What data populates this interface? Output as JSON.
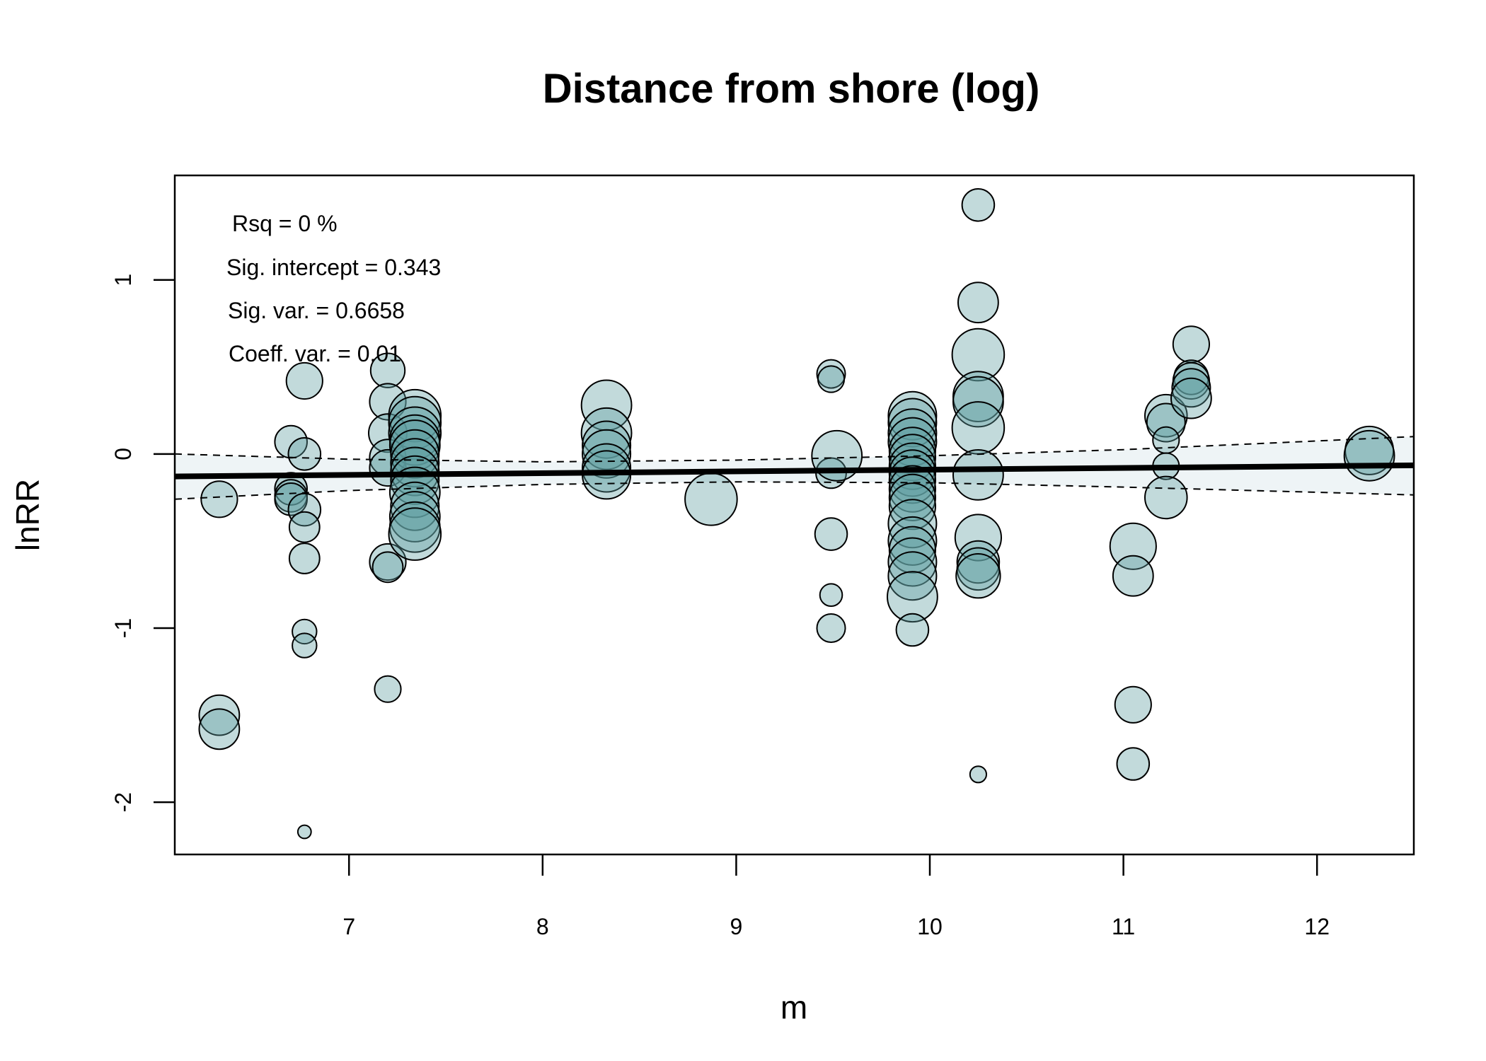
{
  "chart_data": {
    "type": "scatter",
    "title": "Distance from shore (log)",
    "xlabel": "m",
    "ylabel": "lnRR",
    "xlim": [
      6.1,
      12.5
    ],
    "ylim": [
      -2.3,
      1.6
    ],
    "xticks": [
      7,
      8,
      9,
      10,
      11,
      12
    ],
    "xtick_labels": [
      "7",
      "8",
      "9",
      "10",
      "11",
      "12"
    ],
    "yticks": [
      -2,
      -1,
      0,
      1
    ],
    "ytick_labels": [
      "-2",
      "-1",
      "0",
      "1"
    ],
    "grid": false,
    "legend": "none",
    "annotations": [
      "Rsq = 0 %",
      "Sig. intercept = 0.343",
      "Sig. var. = 0.6658",
      "Coeff. var. = 0.01"
    ],
    "regression": {
      "intercept": -0.19,
      "slope": 0.01
    },
    "ci_lower": [
      [
        6.1,
        -0.26
      ],
      [
        7,
        -0.21
      ],
      [
        8,
        -0.175
      ],
      [
        9,
        -0.16
      ],
      [
        10,
        -0.165
      ],
      [
        11,
        -0.19
      ],
      [
        12,
        -0.22
      ],
      [
        12.5,
        -0.235
      ]
    ],
    "ci_upper": [
      [
        6.1,
        0.0
      ],
      [
        7,
        -0.03
      ],
      [
        8,
        -0.045
      ],
      [
        9,
        -0.035
      ],
      [
        10,
        -0.01
      ],
      [
        11,
        0.025
      ],
      [
        12,
        0.075
      ],
      [
        12.5,
        0.1
      ]
    ],
    "points": [
      {
        "x": 6.33,
        "y": -0.26,
        "s": 0.7
      },
      {
        "x": 6.33,
        "y": -1.5,
        "s": 0.8
      },
      {
        "x": 6.33,
        "y": -1.58,
        "s": 0.8
      },
      {
        "x": 6.7,
        "y": 0.07,
        "s": 0.6
      },
      {
        "x": 6.7,
        "y": -0.2,
        "s": 0.6
      },
      {
        "x": 6.7,
        "y": -0.24,
        "s": 0.6
      },
      {
        "x": 6.7,
        "y": -0.26,
        "s": 0.6
      },
      {
        "x": 6.77,
        "y": 0.42,
        "s": 0.7
      },
      {
        "x": 6.77,
        "y": 0.0,
        "s": 0.6
      },
      {
        "x": 6.77,
        "y": -0.32,
        "s": 0.6
      },
      {
        "x": 6.77,
        "y": -0.42,
        "s": 0.55
      },
      {
        "x": 6.77,
        "y": -0.6,
        "s": 0.55
      },
      {
        "x": 6.77,
        "y": -1.02,
        "s": 0.4
      },
      {
        "x": 6.77,
        "y": -1.1,
        "s": 0.4
      },
      {
        "x": 6.77,
        "y": -2.17,
        "s": 0.12
      },
      {
        "x": 7.2,
        "y": 0.48,
        "s": 0.65
      },
      {
        "x": 7.2,
        "y": 0.3,
        "s": 0.7
      },
      {
        "x": 7.2,
        "y": 0.12,
        "s": 0.75
      },
      {
        "x": 7.2,
        "y": -0.02,
        "s": 0.7
      },
      {
        "x": 7.2,
        "y": -0.08,
        "s": 0.7
      },
      {
        "x": 7.2,
        "y": -0.62,
        "s": 0.7
      },
      {
        "x": 7.2,
        "y": -0.65,
        "s": 0.55
      },
      {
        "x": 7.2,
        "y": -1.35,
        "s": 0.45
      },
      {
        "x": 7.34,
        "y": 0.22,
        "s": 1.1
      },
      {
        "x": 7.34,
        "y": 0.18,
        "s": 1.1
      },
      {
        "x": 7.34,
        "y": 0.12,
        "s": 1.1
      },
      {
        "x": 7.34,
        "y": 0.08,
        "s": 1.05
      },
      {
        "x": 7.34,
        "y": 0.05,
        "s": 1.05
      },
      {
        "x": 7.34,
        "y": 0.0,
        "s": 1.0
      },
      {
        "x": 7.34,
        "y": -0.05,
        "s": 1.0
      },
      {
        "x": 7.34,
        "y": -0.1,
        "s": 1.0
      },
      {
        "x": 7.34,
        "y": -0.15,
        "s": 1.0
      },
      {
        "x": 7.34,
        "y": -0.22,
        "s": 1.05
      },
      {
        "x": 7.34,
        "y": -0.3,
        "s": 1.0
      },
      {
        "x": 7.34,
        "y": -0.36,
        "s": 1.05
      },
      {
        "x": 7.34,
        "y": -0.42,
        "s": 1.05
      },
      {
        "x": 7.34,
        "y": -0.46,
        "s": 1.1
      },
      {
        "x": 8.33,
        "y": 0.28,
        "s": 1.05
      },
      {
        "x": 8.33,
        "y": 0.12,
        "s": 1.05
      },
      {
        "x": 8.33,
        "y": 0.05,
        "s": 1.0
      },
      {
        "x": 8.33,
        "y": 0.0,
        "s": 1.0
      },
      {
        "x": 8.33,
        "y": -0.08,
        "s": 1.0
      },
      {
        "x": 8.33,
        "y": -0.12,
        "s": 1.0
      },
      {
        "x": 8.87,
        "y": -0.26,
        "s": 1.1
      },
      {
        "x": 9.49,
        "y": 0.46,
        "s": 0.5
      },
      {
        "x": 9.49,
        "y": 0.43,
        "s": 0.45
      },
      {
        "x": 9.49,
        "y": -0.11,
        "s": 0.55
      },
      {
        "x": 9.49,
        "y": -0.46,
        "s": 0.6
      },
      {
        "x": 9.49,
        "y": -0.81,
        "s": 0.35
      },
      {
        "x": 9.49,
        "y": -1.0,
        "s": 0.5
      },
      {
        "x": 9.52,
        "y": -0.01,
        "s": 1.05
      },
      {
        "x": 9.91,
        "y": 0.22,
        "s": 1.0
      },
      {
        "x": 9.91,
        "y": 0.18,
        "s": 1.0
      },
      {
        "x": 9.91,
        "y": 0.12,
        "s": 1.0
      },
      {
        "x": 9.91,
        "y": 0.07,
        "s": 1.0
      },
      {
        "x": 9.91,
        "y": 0.02,
        "s": 0.95
      },
      {
        "x": 9.91,
        "y": -0.02,
        "s": 0.95
      },
      {
        "x": 9.91,
        "y": -0.07,
        "s": 0.95
      },
      {
        "x": 9.91,
        "y": -0.11,
        "s": 0.95
      },
      {
        "x": 9.91,
        "y": -0.15,
        "s": 0.95
      },
      {
        "x": 9.91,
        "y": -0.2,
        "s": 0.95
      },
      {
        "x": 9.91,
        "y": -0.25,
        "s": 0.95
      },
      {
        "x": 9.91,
        "y": -0.3,
        "s": 0.95
      },
      {
        "x": 9.91,
        "y": -0.4,
        "s": 1.0
      },
      {
        "x": 9.91,
        "y": -0.5,
        "s": 1.0
      },
      {
        "x": 9.91,
        "y": -0.55,
        "s": 0.95
      },
      {
        "x": 9.91,
        "y": -0.62,
        "s": 1.0
      },
      {
        "x": 9.91,
        "y": -0.7,
        "s": 1.0
      },
      {
        "x": 9.91,
        "y": -0.82,
        "s": 1.05
      },
      {
        "x": 9.91,
        "y": -1.01,
        "s": 0.6
      },
      {
        "x": 10.25,
        "y": 1.43,
        "s": 0.6
      },
      {
        "x": 10.25,
        "y": 0.87,
        "s": 0.8
      },
      {
        "x": 10.25,
        "y": 0.57,
        "s": 1.1
      },
      {
        "x": 10.25,
        "y": 0.33,
        "s": 1.05
      },
      {
        "x": 10.25,
        "y": 0.3,
        "s": 1.05
      },
      {
        "x": 10.25,
        "y": 0.15,
        "s": 1.1
      },
      {
        "x": 10.25,
        "y": -0.12,
        "s": 1.05
      },
      {
        "x": 10.25,
        "y": -0.48,
        "s": 0.95
      },
      {
        "x": 10.25,
        "y": -0.62,
        "s": 0.85
      },
      {
        "x": 10.25,
        "y": -0.66,
        "s": 0.85
      },
      {
        "x": 10.25,
        "y": -0.7,
        "s": 0.9
      },
      {
        "x": 10.25,
        "y": -1.84,
        "s": 0.2
      },
      {
        "x": 11.05,
        "y": -0.53,
        "s": 0.95
      },
      {
        "x": 11.05,
        "y": -0.7,
        "s": 0.8
      },
      {
        "x": 11.05,
        "y": -1.44,
        "s": 0.7
      },
      {
        "x": 11.05,
        "y": -1.78,
        "s": 0.6
      },
      {
        "x": 11.22,
        "y": 0.22,
        "s": 0.85
      },
      {
        "x": 11.22,
        "y": 0.18,
        "s": 0.75
      },
      {
        "x": 11.22,
        "y": 0.08,
        "s": 0.45
      },
      {
        "x": 11.22,
        "y": -0.07,
        "s": 0.45
      },
      {
        "x": 11.22,
        "y": -0.25,
        "s": 0.85
      },
      {
        "x": 11.35,
        "y": 0.63,
        "s": 0.7
      },
      {
        "x": 11.35,
        "y": 0.44,
        "s": 0.65
      },
      {
        "x": 11.35,
        "y": 0.42,
        "s": 0.7
      },
      {
        "x": 11.35,
        "y": 0.38,
        "s": 0.75
      },
      {
        "x": 11.35,
        "y": 0.32,
        "s": 0.8
      },
      {
        "x": 12.27,
        "y": 0.02,
        "s": 1.0
      },
      {
        "x": 12.27,
        "y": -0.01,
        "s": 1.05
      }
    ]
  }
}
